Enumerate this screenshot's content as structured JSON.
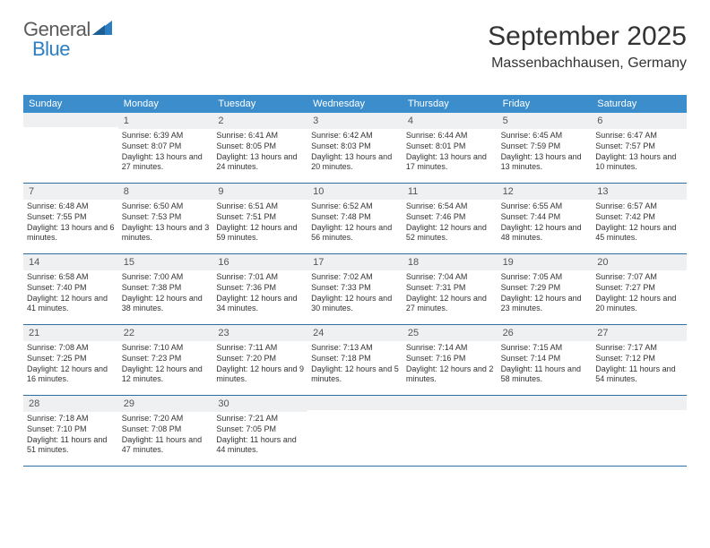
{
  "logo": {
    "text_main": "General",
    "text_accent": "Blue"
  },
  "header": {
    "month": "September 2025",
    "location": "Massenbachhausen, Germany"
  },
  "weekdays": [
    "Sunday",
    "Monday",
    "Tuesday",
    "Wednesday",
    "Thursday",
    "Friday",
    "Saturday"
  ],
  "colors": {
    "header_bg": "#3c8dcc",
    "border": "#2e6ea3",
    "daynum_bg": "#eef0f1",
    "text": "#333333",
    "logo_gray": "#5b5b5b",
    "logo_blue": "#2b7ec2"
  },
  "weekday_header": {
    "bg": "#3c8dcc",
    "fg": "#ffffff",
    "fontsize": 11
  },
  "cell_style": {
    "fontsize": 9,
    "line_height": 1.3,
    "daynum_fontsize": 11
  },
  "weeks": [
    [
      {
        "blank": true
      },
      {
        "num": "1",
        "sunrise": "6:39 AM",
        "sunset": "8:07 PM",
        "daylight": "13 hours and 27 minutes."
      },
      {
        "num": "2",
        "sunrise": "6:41 AM",
        "sunset": "8:05 PM",
        "daylight": "13 hours and 24 minutes."
      },
      {
        "num": "3",
        "sunrise": "6:42 AM",
        "sunset": "8:03 PM",
        "daylight": "13 hours and 20 minutes."
      },
      {
        "num": "4",
        "sunrise": "6:44 AM",
        "sunset": "8:01 PM",
        "daylight": "13 hours and 17 minutes."
      },
      {
        "num": "5",
        "sunrise": "6:45 AM",
        "sunset": "7:59 PM",
        "daylight": "13 hours and 13 minutes."
      },
      {
        "num": "6",
        "sunrise": "6:47 AM",
        "sunset": "7:57 PM",
        "daylight": "13 hours and 10 minutes."
      }
    ],
    [
      {
        "num": "7",
        "sunrise": "6:48 AM",
        "sunset": "7:55 PM",
        "daylight": "13 hours and 6 minutes."
      },
      {
        "num": "8",
        "sunrise": "6:50 AM",
        "sunset": "7:53 PM",
        "daylight": "13 hours and 3 minutes."
      },
      {
        "num": "9",
        "sunrise": "6:51 AM",
        "sunset": "7:51 PM",
        "daylight": "12 hours and 59 minutes."
      },
      {
        "num": "10",
        "sunrise": "6:52 AM",
        "sunset": "7:48 PM",
        "daylight": "12 hours and 56 minutes."
      },
      {
        "num": "11",
        "sunrise": "6:54 AM",
        "sunset": "7:46 PM",
        "daylight": "12 hours and 52 minutes."
      },
      {
        "num": "12",
        "sunrise": "6:55 AM",
        "sunset": "7:44 PM",
        "daylight": "12 hours and 48 minutes."
      },
      {
        "num": "13",
        "sunrise": "6:57 AM",
        "sunset": "7:42 PM",
        "daylight": "12 hours and 45 minutes."
      }
    ],
    [
      {
        "num": "14",
        "sunrise": "6:58 AM",
        "sunset": "7:40 PM",
        "daylight": "12 hours and 41 minutes."
      },
      {
        "num": "15",
        "sunrise": "7:00 AM",
        "sunset": "7:38 PM",
        "daylight": "12 hours and 38 minutes."
      },
      {
        "num": "16",
        "sunrise": "7:01 AM",
        "sunset": "7:36 PM",
        "daylight": "12 hours and 34 minutes."
      },
      {
        "num": "17",
        "sunrise": "7:02 AM",
        "sunset": "7:33 PM",
        "daylight": "12 hours and 30 minutes."
      },
      {
        "num": "18",
        "sunrise": "7:04 AM",
        "sunset": "7:31 PM",
        "daylight": "12 hours and 27 minutes."
      },
      {
        "num": "19",
        "sunrise": "7:05 AM",
        "sunset": "7:29 PM",
        "daylight": "12 hours and 23 minutes."
      },
      {
        "num": "20",
        "sunrise": "7:07 AM",
        "sunset": "7:27 PM",
        "daylight": "12 hours and 20 minutes."
      }
    ],
    [
      {
        "num": "21",
        "sunrise": "7:08 AM",
        "sunset": "7:25 PM",
        "daylight": "12 hours and 16 minutes."
      },
      {
        "num": "22",
        "sunrise": "7:10 AM",
        "sunset": "7:23 PM",
        "daylight": "12 hours and 12 minutes."
      },
      {
        "num": "23",
        "sunrise": "7:11 AM",
        "sunset": "7:20 PM",
        "daylight": "12 hours and 9 minutes."
      },
      {
        "num": "24",
        "sunrise": "7:13 AM",
        "sunset": "7:18 PM",
        "daylight": "12 hours and 5 minutes."
      },
      {
        "num": "25",
        "sunrise": "7:14 AM",
        "sunset": "7:16 PM",
        "daylight": "12 hours and 2 minutes."
      },
      {
        "num": "26",
        "sunrise": "7:15 AM",
        "sunset": "7:14 PM",
        "daylight": "11 hours and 58 minutes."
      },
      {
        "num": "27",
        "sunrise": "7:17 AM",
        "sunset": "7:12 PM",
        "daylight": "11 hours and 54 minutes."
      }
    ],
    [
      {
        "num": "28",
        "sunrise": "7:18 AM",
        "sunset": "7:10 PM",
        "daylight": "11 hours and 51 minutes."
      },
      {
        "num": "29",
        "sunrise": "7:20 AM",
        "sunset": "7:08 PM",
        "daylight": "11 hours and 47 minutes."
      },
      {
        "num": "30",
        "sunrise": "7:21 AM",
        "sunset": "7:05 PM",
        "daylight": "11 hours and 44 minutes."
      },
      {
        "blank": true
      },
      {
        "blank": true
      },
      {
        "blank": true
      },
      {
        "blank": true
      }
    ]
  ]
}
